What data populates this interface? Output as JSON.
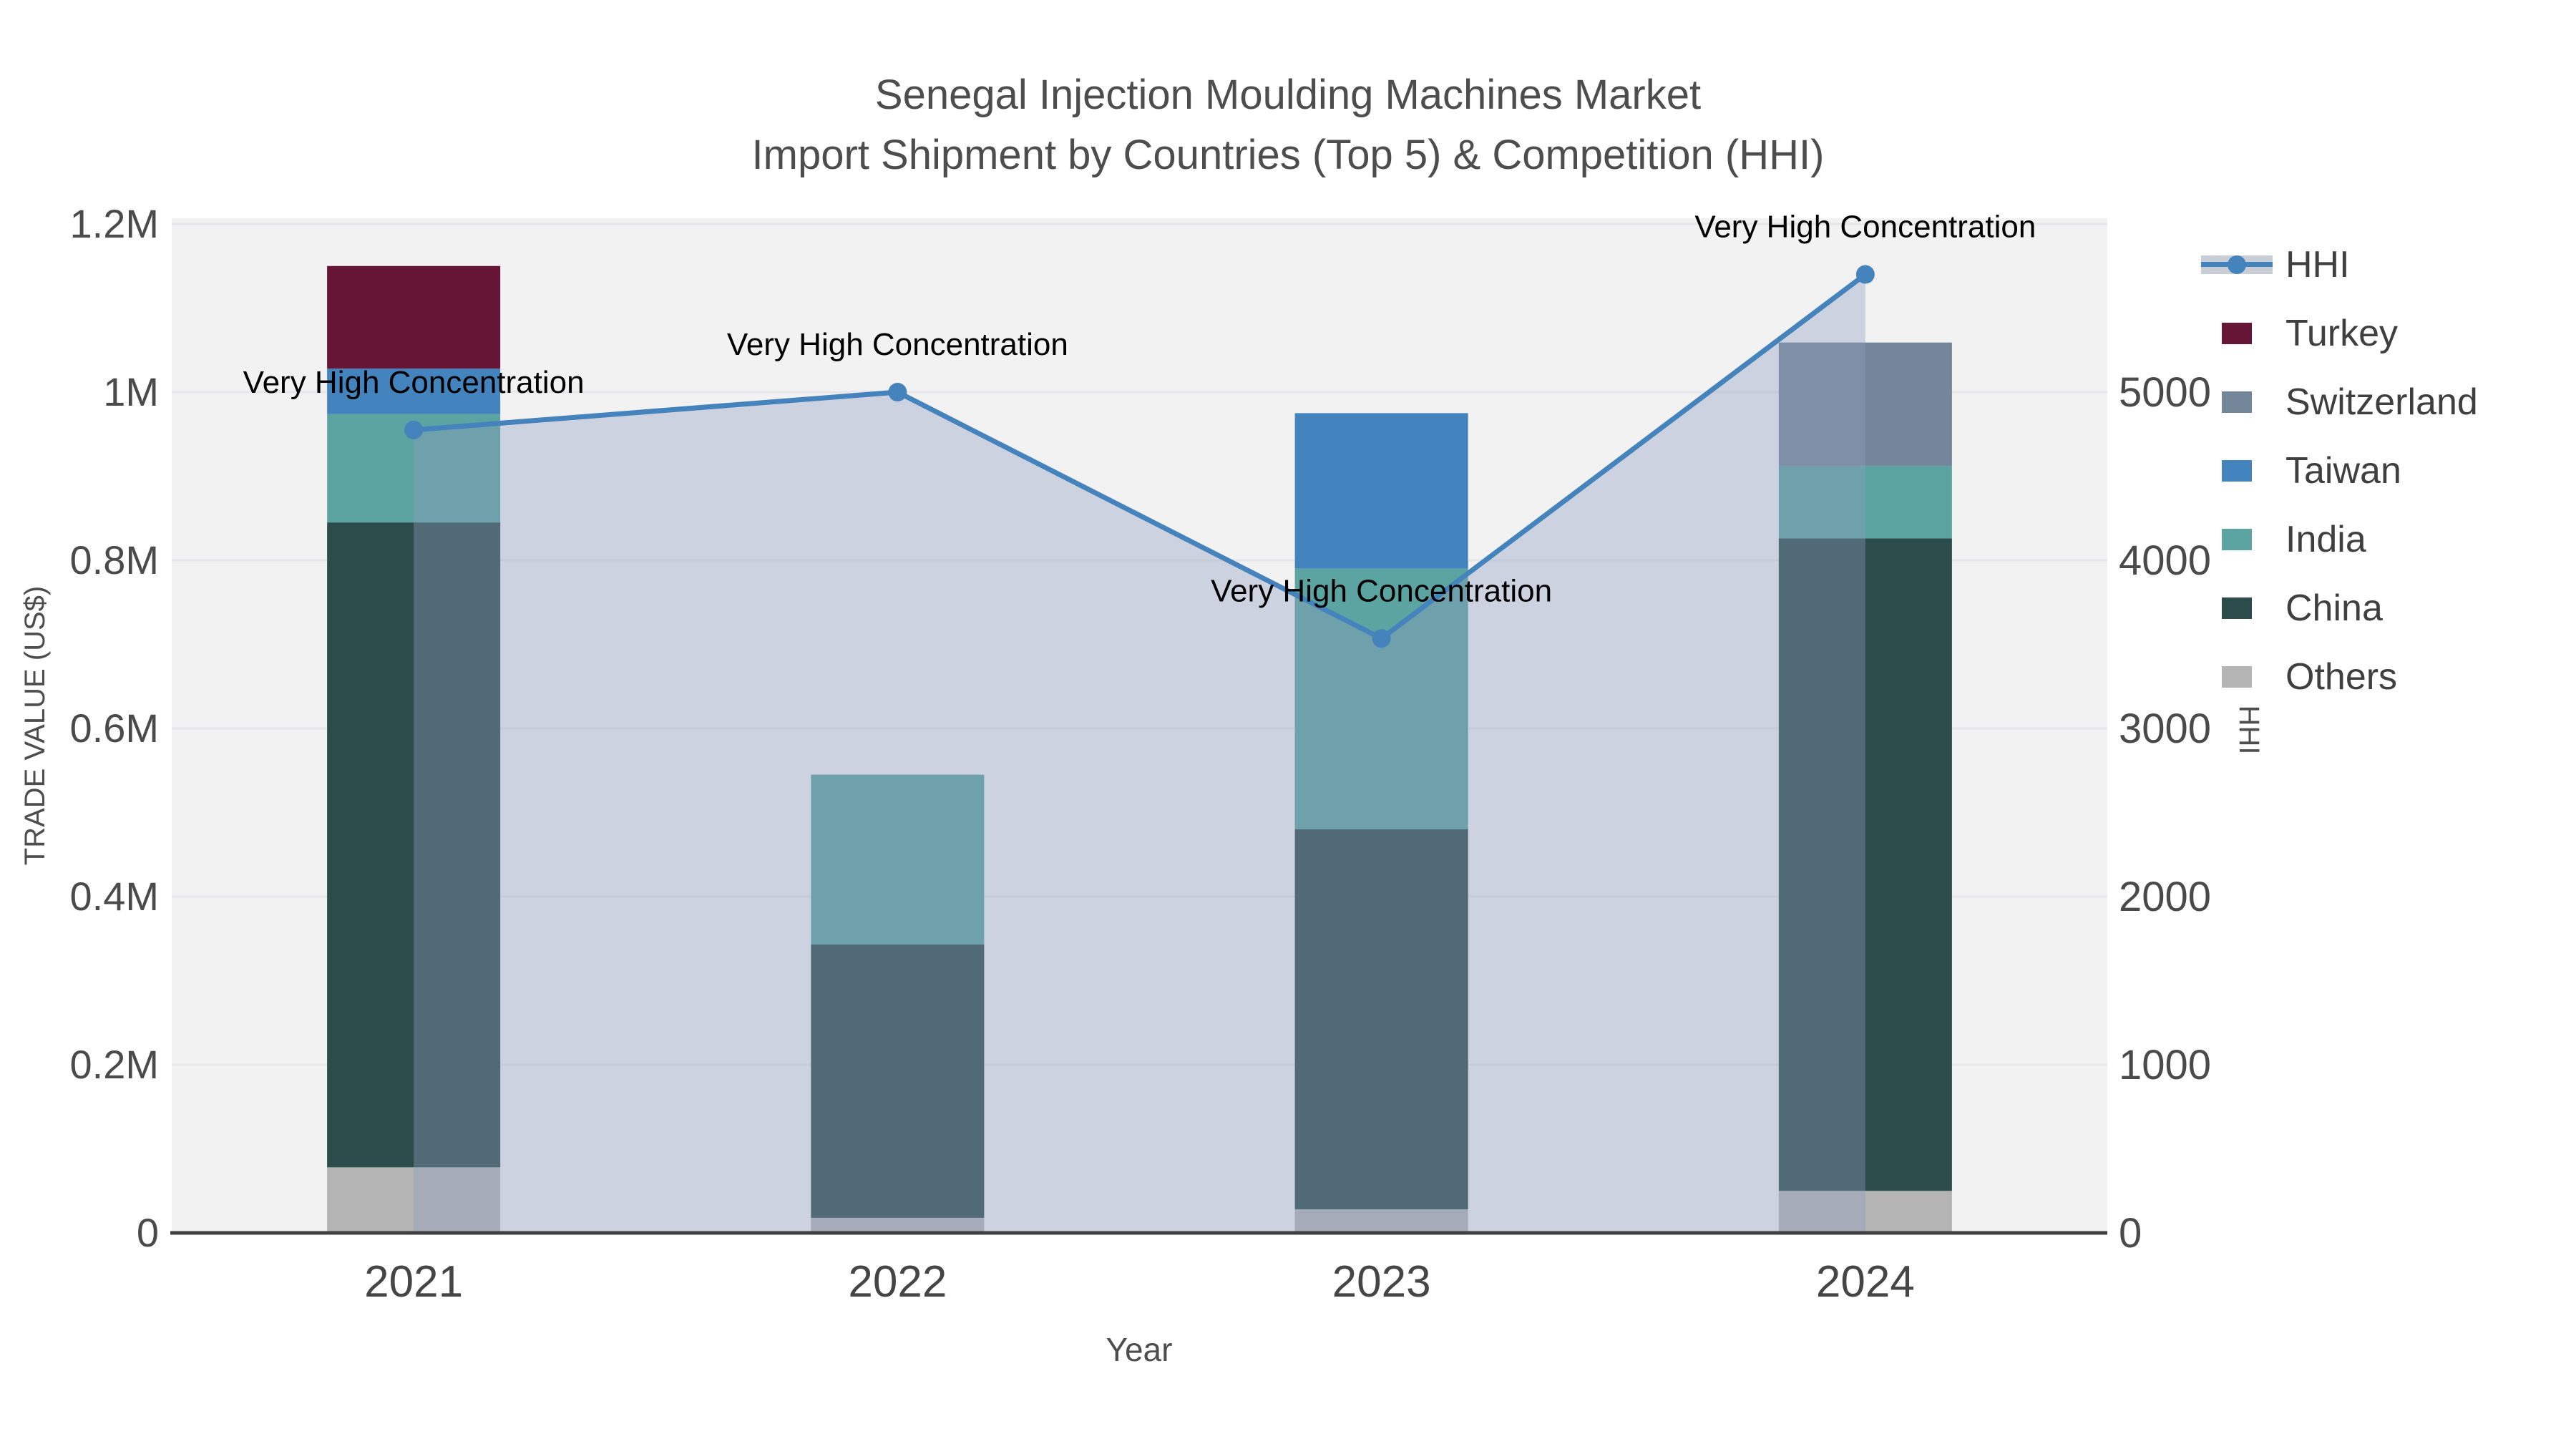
{
  "chart_data": {
    "type": "bar+line",
    "title_line1": "Senegal Injection Moulding Machines Market",
    "title_line2": "Import Shipment by Countries (Top 5) & Competition (HHI)",
    "categories": [
      "2021",
      "2022",
      "2023",
      "2024"
    ],
    "series": [
      {
        "name": "Others",
        "color": "#b4b4b5",
        "values": [
          78000,
          18000,
          28000,
          50000
        ]
      },
      {
        "name": "China",
        "color": "#2b4c4a",
        "values": [
          767000,
          325000,
          452000,
          776000
        ]
      },
      {
        "name": "India",
        "color": "#5ca4a1",
        "values": [
          129000,
          202000,
          310000,
          86000
        ]
      },
      {
        "name": "Taiwan",
        "color": "#4384bf",
        "values": [
          54000,
          0,
          185000,
          0
        ]
      },
      {
        "name": "Turkey",
        "color": "#661537",
        "values": [
          122000,
          0,
          0,
          0
        ]
      },
      {
        "name": "Switzerland",
        "color": "#74869a",
        "values": [
          0,
          0,
          0,
          147000
        ]
      }
    ],
    "bar_totals": [
      1150000,
      545000,
      975000,
      1059000
    ],
    "hhi": {
      "name": "HHI",
      "color": "#4583bd",
      "area_color": "rgba(141,158,191,0.38)",
      "values": [
        4775,
        5000,
        3535,
        5700
      ]
    },
    "annotations": [
      {
        "x": "2021",
        "text": "Very High Concentration"
      },
      {
        "x": "2022",
        "text": "Very High Concentration"
      },
      {
        "x": "2023",
        "text": "Very High Concentration"
      },
      {
        "x": "2024",
        "text": "Very High Concentration"
      }
    ],
    "left_axis": {
      "label": "TRADE VALUE (US$)",
      "ticks": [
        "0",
        "0.2M",
        "0.4M",
        "0.6M",
        "0.8M",
        "1M",
        "1.2M"
      ],
      "tick_values": [
        0,
        200000,
        400000,
        600000,
        800000,
        1000000,
        1200000
      ],
      "max": 1200000
    },
    "right_axis": {
      "label": "HHI",
      "ticks": [
        "0",
        "1000",
        "2000",
        "3000",
        "4000",
        "5000"
      ],
      "tick_values": [
        0,
        1000,
        2000,
        3000,
        4000,
        5000
      ],
      "max": 6000
    },
    "x_axis": {
      "label": "Year"
    },
    "legend": [
      {
        "label": "HHI",
        "color": "#4583bd"
      },
      {
        "label": "Turkey",
        "color": "#661537"
      },
      {
        "label": "Switzerland",
        "color": "#74869a"
      },
      {
        "label": "Taiwan",
        "color": "#4384bf"
      },
      {
        "label": "India",
        "color": "#5ca4a1"
      },
      {
        "label": "China",
        "color": "#2b4c4a"
      },
      {
        "label": "Others",
        "color": "#b4b4b5"
      }
    ],
    "style": {
      "plot_bg": "#f2f2f3",
      "grid": "#e7e7e9",
      "axis_line": "#3f3f3f",
      "tick_text": "#4a4a4a",
      "x_tick_text": "#454545",
      "title_text": "#4d4d4d",
      "annotation_text": "#000000",
      "legend_band": "#c9cdd6"
    }
  }
}
